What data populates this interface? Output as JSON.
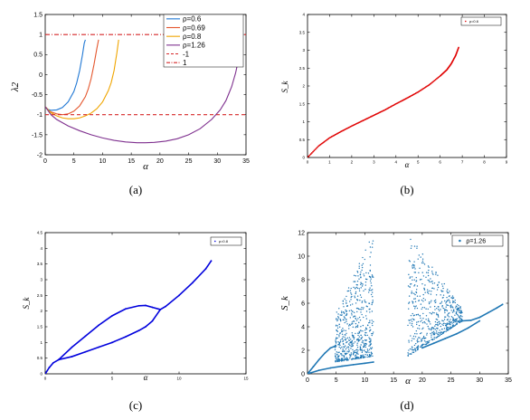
{
  "chart_data": [
    {
      "panel": "a",
      "caption": "(a)",
      "type": "line",
      "xlabel": "α",
      "ylabel": "λ2",
      "xlim": [
        0,
        35
      ],
      "ylim": [
        -2,
        1.5
      ],
      "xticks": [
        0,
        5,
        10,
        15,
        20,
        25,
        30,
        35
      ],
      "yticks": [
        -2,
        -1.5,
        -1,
        -0.5,
        0,
        0.5,
        1,
        1.5
      ],
      "xtick_labels": [
        "0",
        "5",
        "10",
        "15",
        "20",
        "25",
        "30",
        "35"
      ],
      "ytick_labels": [
        "-2",
        "-1.5",
        "-1",
        "-0.5",
        "0",
        "0.5",
        "1",
        "1.5"
      ],
      "legend_position": "top-right",
      "series": [
        {
          "name": "ρ=0.6",
          "color": "#1f77d4",
          "style": "solid",
          "x": [
            0,
            0.5,
            1,
            2,
            3,
            4,
            5,
            5.5,
            6,
            6.5,
            6.8,
            7.0
          ],
          "y": [
            -0.8,
            -0.87,
            -0.89,
            -0.88,
            -0.82,
            -0.68,
            -0.42,
            -0.2,
            0.1,
            0.5,
            0.78,
            0.87
          ]
        },
        {
          "name": "ρ=0.69",
          "color": "#e4572e",
          "style": "solid",
          "x": [
            0,
            0.5,
            1,
            2,
            3,
            4,
            5,
            6,
            7,
            7.5,
            8,
            8.5,
            9.0,
            9.3
          ],
          "y": [
            -0.8,
            -0.88,
            -0.93,
            -0.98,
            -1.0,
            -0.98,
            -0.91,
            -0.78,
            -0.55,
            -0.36,
            -0.1,
            0.25,
            0.65,
            0.87
          ]
        },
        {
          "name": "ρ=0.8",
          "color": "#f0a500",
          "style": "solid",
          "x": [
            0,
            1,
            2,
            3,
            4,
            5,
            6,
            7,
            8,
            9,
            10,
            11,
            11.5,
            12,
            12.5,
            12.8
          ],
          "y": [
            -0.8,
            -0.95,
            -1.03,
            -1.08,
            -1.1,
            -1.1,
            -1.08,
            -1.03,
            -0.96,
            -0.85,
            -0.68,
            -0.4,
            -0.2,
            0.1,
            0.55,
            0.87
          ]
        },
        {
          "name": "ρ=1.26",
          "color": "#7e2f8e",
          "style": "solid",
          "x": [
            0,
            1,
            2,
            4,
            6,
            8,
            10,
            12,
            14,
            16,
            17.5,
            19,
            21,
            23,
            25,
            27,
            29,
            30.5,
            31.5,
            32.5,
            33.2,
            33.8,
            34.2
          ],
          "y": [
            -0.8,
            -1.0,
            -1.12,
            -1.28,
            -1.4,
            -1.5,
            -1.58,
            -1.64,
            -1.68,
            -1.7,
            -1.7,
            -1.69,
            -1.66,
            -1.6,
            -1.5,
            -1.35,
            -1.12,
            -0.88,
            -0.65,
            -0.3,
            0.05,
            0.45,
            0.87
          ]
        },
        {
          "name": "-1",
          "color": "#d62728",
          "style": "dashed",
          "x": [
            0,
            35
          ],
          "y": [
            -1,
            -1
          ]
        },
        {
          "name": "1",
          "color": "#d62728",
          "style": "dashdot",
          "x": [
            0,
            35
          ],
          "y": [
            1,
            1
          ]
        }
      ]
    },
    {
      "panel": "b",
      "caption": "(b)",
      "type": "scatter",
      "xlabel": "α",
      "ylabel": "S_k",
      "xlim": [
        0,
        9
      ],
      "ylim": [
        0,
        4
      ],
      "xticks": [
        0,
        1,
        2,
        3,
        4,
        5,
        6,
        7,
        8,
        9
      ],
      "yticks": [
        0,
        0.5,
        1,
        1.5,
        2,
        2.5,
        3,
        3.5,
        4
      ],
      "xtick_labels": [
        "0",
        "1",
        "2",
        "3",
        "4",
        "5",
        "6",
        "7",
        "8",
        "9"
      ],
      "ytick_labels": [
        "0",
        "0.5",
        "1",
        "1.5",
        "2",
        "2.5",
        "3",
        "3.5",
        "4"
      ],
      "legend_position": "top-right",
      "series": [
        {
          "name": "ρ=0.6",
          "color": "#e00000",
          "x": [
            0.0,
            0.5,
            1.0,
            1.5,
            2.0,
            2.5,
            3.0,
            3.5,
            4.0,
            4.5,
            5.0,
            5.5,
            6.0,
            6.3,
            6.5,
            6.7,
            6.85
          ],
          "y": [
            0.0,
            0.32,
            0.55,
            0.72,
            0.88,
            1.03,
            1.18,
            1.33,
            1.5,
            1.66,
            1.83,
            2.03,
            2.28,
            2.45,
            2.62,
            2.85,
            3.1
          ]
        }
      ]
    },
    {
      "panel": "c",
      "caption": "(c)",
      "type": "scatter",
      "xlabel": "α",
      "ylabel": "S_k",
      "xlim": [
        0,
        15
      ],
      "ylim": [
        0,
        4.5
      ],
      "xticks": [
        0,
        5,
        10,
        15
      ],
      "yticks": [
        0,
        0.5,
        1,
        1.5,
        2,
        2.5,
        3,
        3.5,
        4,
        4.5
      ],
      "xtick_labels": [
        "0",
        "5",
        "10",
        "15"
      ],
      "ytick_labels": [
        "0",
        "0.5",
        "1",
        "1.5",
        "2",
        "2.5",
        "3",
        "3.5",
        "4",
        "4.5"
      ],
      "legend_position": "top-right",
      "series": [
        {
          "name": "ρ=0.8",
          "color": "#0000dd",
          "branches": [
            {
              "x": [
                0.0,
                0.3,
                0.6,
                1.0
              ],
              "y": [
                0.0,
                0.2,
                0.35,
                0.45
              ]
            },
            {
              "x": [
                1.0,
                2,
                3,
                4,
                5,
                6,
                7,
                7.5,
                8,
                8.6
              ],
              "y": [
                0.45,
                0.85,
                1.2,
                1.55,
                1.85,
                2.07,
                2.17,
                2.18,
                2.12,
                2.05
              ]
            },
            {
              "x": [
                1.0,
                2,
                3,
                4,
                5,
                6,
                7,
                7.5,
                8,
                8.6
              ],
              "y": [
                0.45,
                0.55,
                0.7,
                0.85,
                1.0,
                1.18,
                1.38,
                1.5,
                1.68,
                2.05
              ]
            },
            {
              "x": [
                8.6,
                9.0,
                10,
                11,
                12,
                12.4
              ],
              "y": [
                2.05,
                2.15,
                2.5,
                2.9,
                3.35,
                3.6
              ]
            }
          ]
        }
      ]
    },
    {
      "panel": "d",
      "caption": "(d)",
      "type": "scatter",
      "xlabel": "α",
      "ylabel": "S_k",
      "xlim": [
        0,
        35
      ],
      "ylim": [
        0,
        12
      ],
      "xticks": [
        0,
        5,
        10,
        15,
        20,
        25,
        30,
        35
      ],
      "yticks": [
        0,
        2,
        4,
        6,
        8,
        10,
        12
      ],
      "xtick_labels": [
        "0",
        "5",
        "10",
        "15",
        "20",
        "25",
        "30",
        "35"
      ],
      "ytick_labels": [
        "0",
        "2",
        "4",
        "6",
        "8",
        "10",
        "12"
      ],
      "legend_position": "top-right",
      "series": [
        {
          "name": "ρ=1.26",
          "color": "#1f77b4",
          "branches": [
            {
              "x": [
                0,
                1,
                2,
                3,
                4,
                4.8
              ],
              "y": [
                0,
                0.6,
                1.2,
                1.75,
                2.2,
                2.35
              ]
            },
            {
              "x": [
                0,
                2,
                4,
                6,
                8,
                10,
                11.5
              ],
              "y": [
                0,
                0.3,
                0.5,
                0.65,
                0.78,
                0.9,
                1.0
              ]
            },
            {
              "x": [
                27,
                28.5,
                30,
                31.5,
                33,
                34
              ],
              "y": [
                4.5,
                4.55,
                4.8,
                5.2,
                5.6,
                5.9
              ]
            },
            {
              "x": [
                20,
                22,
                24,
                26,
                28,
                30
              ],
              "y": [
                2.2,
                2.6,
                3.0,
                3.4,
                3.9,
                4.5
              ]
            }
          ],
          "chaotic_regions": [
            {
              "x": [
                4.8,
                11.5
              ],
              "y_low": [
                1.0,
                1.5
              ],
              "y_high": [
                5.0,
                12
              ]
            },
            {
              "x": [
                17.5,
                27
              ],
              "y_low": [
                1.5,
                4.5
              ],
              "y_high": [
                12,
                5.5
              ]
            }
          ]
        }
      ]
    }
  ]
}
